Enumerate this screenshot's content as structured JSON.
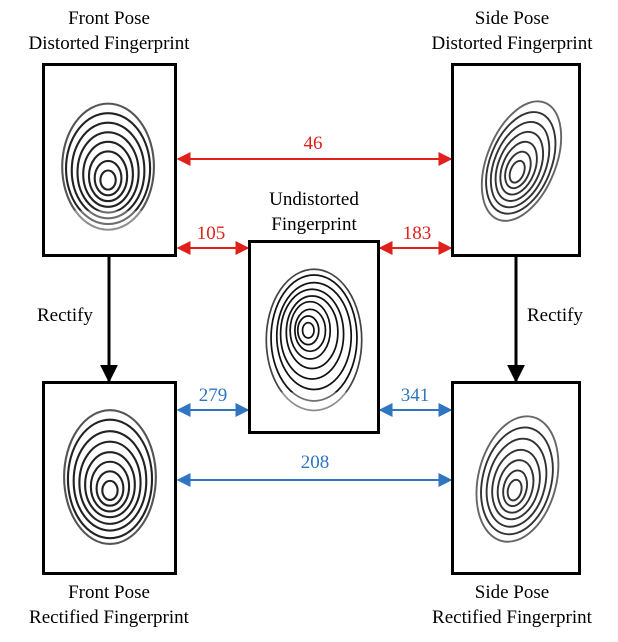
{
  "labels": {
    "front_distorted": [
      "Front Pose",
      "Distorted Fingerprint"
    ],
    "side_distorted": [
      "Side Pose",
      "Distorted Fingerprint"
    ],
    "undistorted": [
      "Undistorted",
      "Fingerprint"
    ],
    "front_rectified": [
      "Front Pose",
      "Rectified Fingerprint"
    ],
    "side_rectified": [
      "Side Pose",
      "Rectified Fingerprint"
    ]
  },
  "scores": {
    "distorted_pair": "46",
    "front_distorted_vs_undistorted": "105",
    "side_distorted_vs_undistorted": "183",
    "front_rectified_vs_undistorted": "279",
    "side_rectified_vs_undistorted": "341",
    "rectified_pair": "208"
  },
  "actions": {
    "left": "Rectify",
    "right": "Rectify"
  },
  "colors": {
    "distorted_score": "#e0201b",
    "rectified_score": "#2e75c2",
    "frame": "#000000"
  }
}
